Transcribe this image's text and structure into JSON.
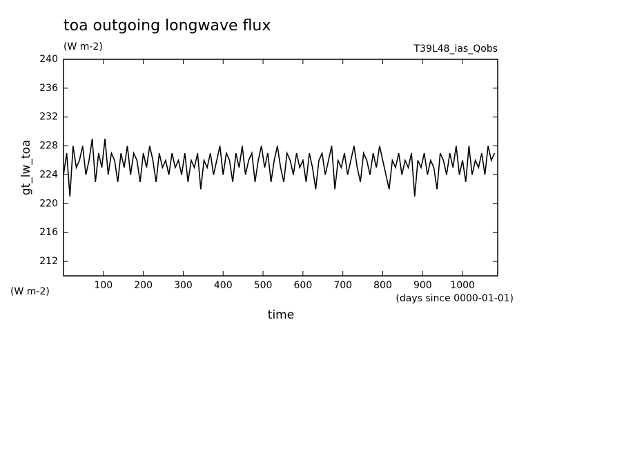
{
  "chart_data": {
    "type": "line",
    "title": "toa outgoing longwave flux",
    "subtitle": "(W m-2)",
    "annotation": "T39L48_ias_Qobs",
    "ylabel": "gt_lw_toa",
    "y_units": "(W m-2)",
    "xlabel": "time",
    "x_units": "(days since 0000-01-01)",
    "x": [
      0,
      8,
      16,
      24,
      32,
      40,
      48,
      56,
      64,
      72,
      80,
      88,
      96,
      104,
      112,
      120,
      128,
      136,
      144,
      152,
      160,
      168,
      176,
      184,
      192,
      200,
      208,
      216,
      224,
      232,
      240,
      248,
      256,
      264,
      272,
      280,
      288,
      296,
      304,
      312,
      320,
      328,
      336,
      344,
      352,
      360,
      368,
      376,
      384,
      392,
      400,
      408,
      416,
      424,
      432,
      440,
      448,
      456,
      464,
      472,
      480,
      488,
      496,
      504,
      512,
      520,
      528,
      536,
      544,
      552,
      560,
      568,
      576,
      584,
      592,
      600,
      608,
      616,
      624,
      632,
      640,
      648,
      656,
      664,
      672,
      680,
      688,
      696,
      704,
      712,
      720,
      728,
      736,
      744,
      752,
      760,
      768,
      776,
      784,
      792,
      800,
      808,
      816,
      824,
      832,
      840,
      848,
      856,
      864,
      872,
      880,
      888,
      896,
      904,
      912,
      920,
      928,
      936,
      944,
      952,
      960,
      968,
      976,
      984,
      992,
      1000,
      1008,
      1016,
      1024,
      1032,
      1040,
      1048,
      1056,
      1064,
      1072,
      1080
    ],
    "values": [
      224,
      227,
      221,
      228,
      225,
      226,
      228,
      224,
      226,
      229,
      223,
      227,
      225,
      229,
      224,
      227,
      226,
      223,
      227,
      225,
      228,
      224,
      227,
      226,
      223,
      227,
      225,
      228,
      226,
      223,
      227,
      225,
      226,
      224,
      227,
      225,
      226,
      224,
      227,
      223,
      226,
      225,
      227,
      222,
      226,
      225,
      227,
      224,
      226,
      228,
      224,
      227,
      226,
      223,
      227,
      225,
      228,
      224,
      226,
      227,
      223,
      226,
      228,
      225,
      227,
      223,
      226,
      228,
      225,
      223,
      227,
      226,
      224,
      227,
      225,
      226,
      223,
      227,
      225,
      222,
      226,
      227,
      224,
      226,
      228,
      222,
      226,
      225,
      227,
      224,
      226,
      228,
      225,
      223,
      227,
      226,
      224,
      227,
      225,
      228,
      226,
      224,
      222,
      226,
      225,
      227,
      224,
      226,
      225,
      227,
      221,
      226,
      225,
      227,
      224,
      226,
      225,
      222,
      227,
      226,
      224,
      227,
      225,
      228,
      224,
      226,
      223,
      228,
      224,
      226,
      225,
      227,
      224,
      228,
      226,
      227
    ],
    "color": "#000000",
    "xlim": [
      0,
      1088
    ],
    "ylim": [
      210,
      240
    ],
    "xticks": [
      100,
      200,
      300,
      400,
      500,
      600,
      700,
      800,
      900,
      1000
    ],
    "yticks": [
      212,
      216,
      220,
      224,
      228,
      232,
      236,
      240
    ]
  }
}
